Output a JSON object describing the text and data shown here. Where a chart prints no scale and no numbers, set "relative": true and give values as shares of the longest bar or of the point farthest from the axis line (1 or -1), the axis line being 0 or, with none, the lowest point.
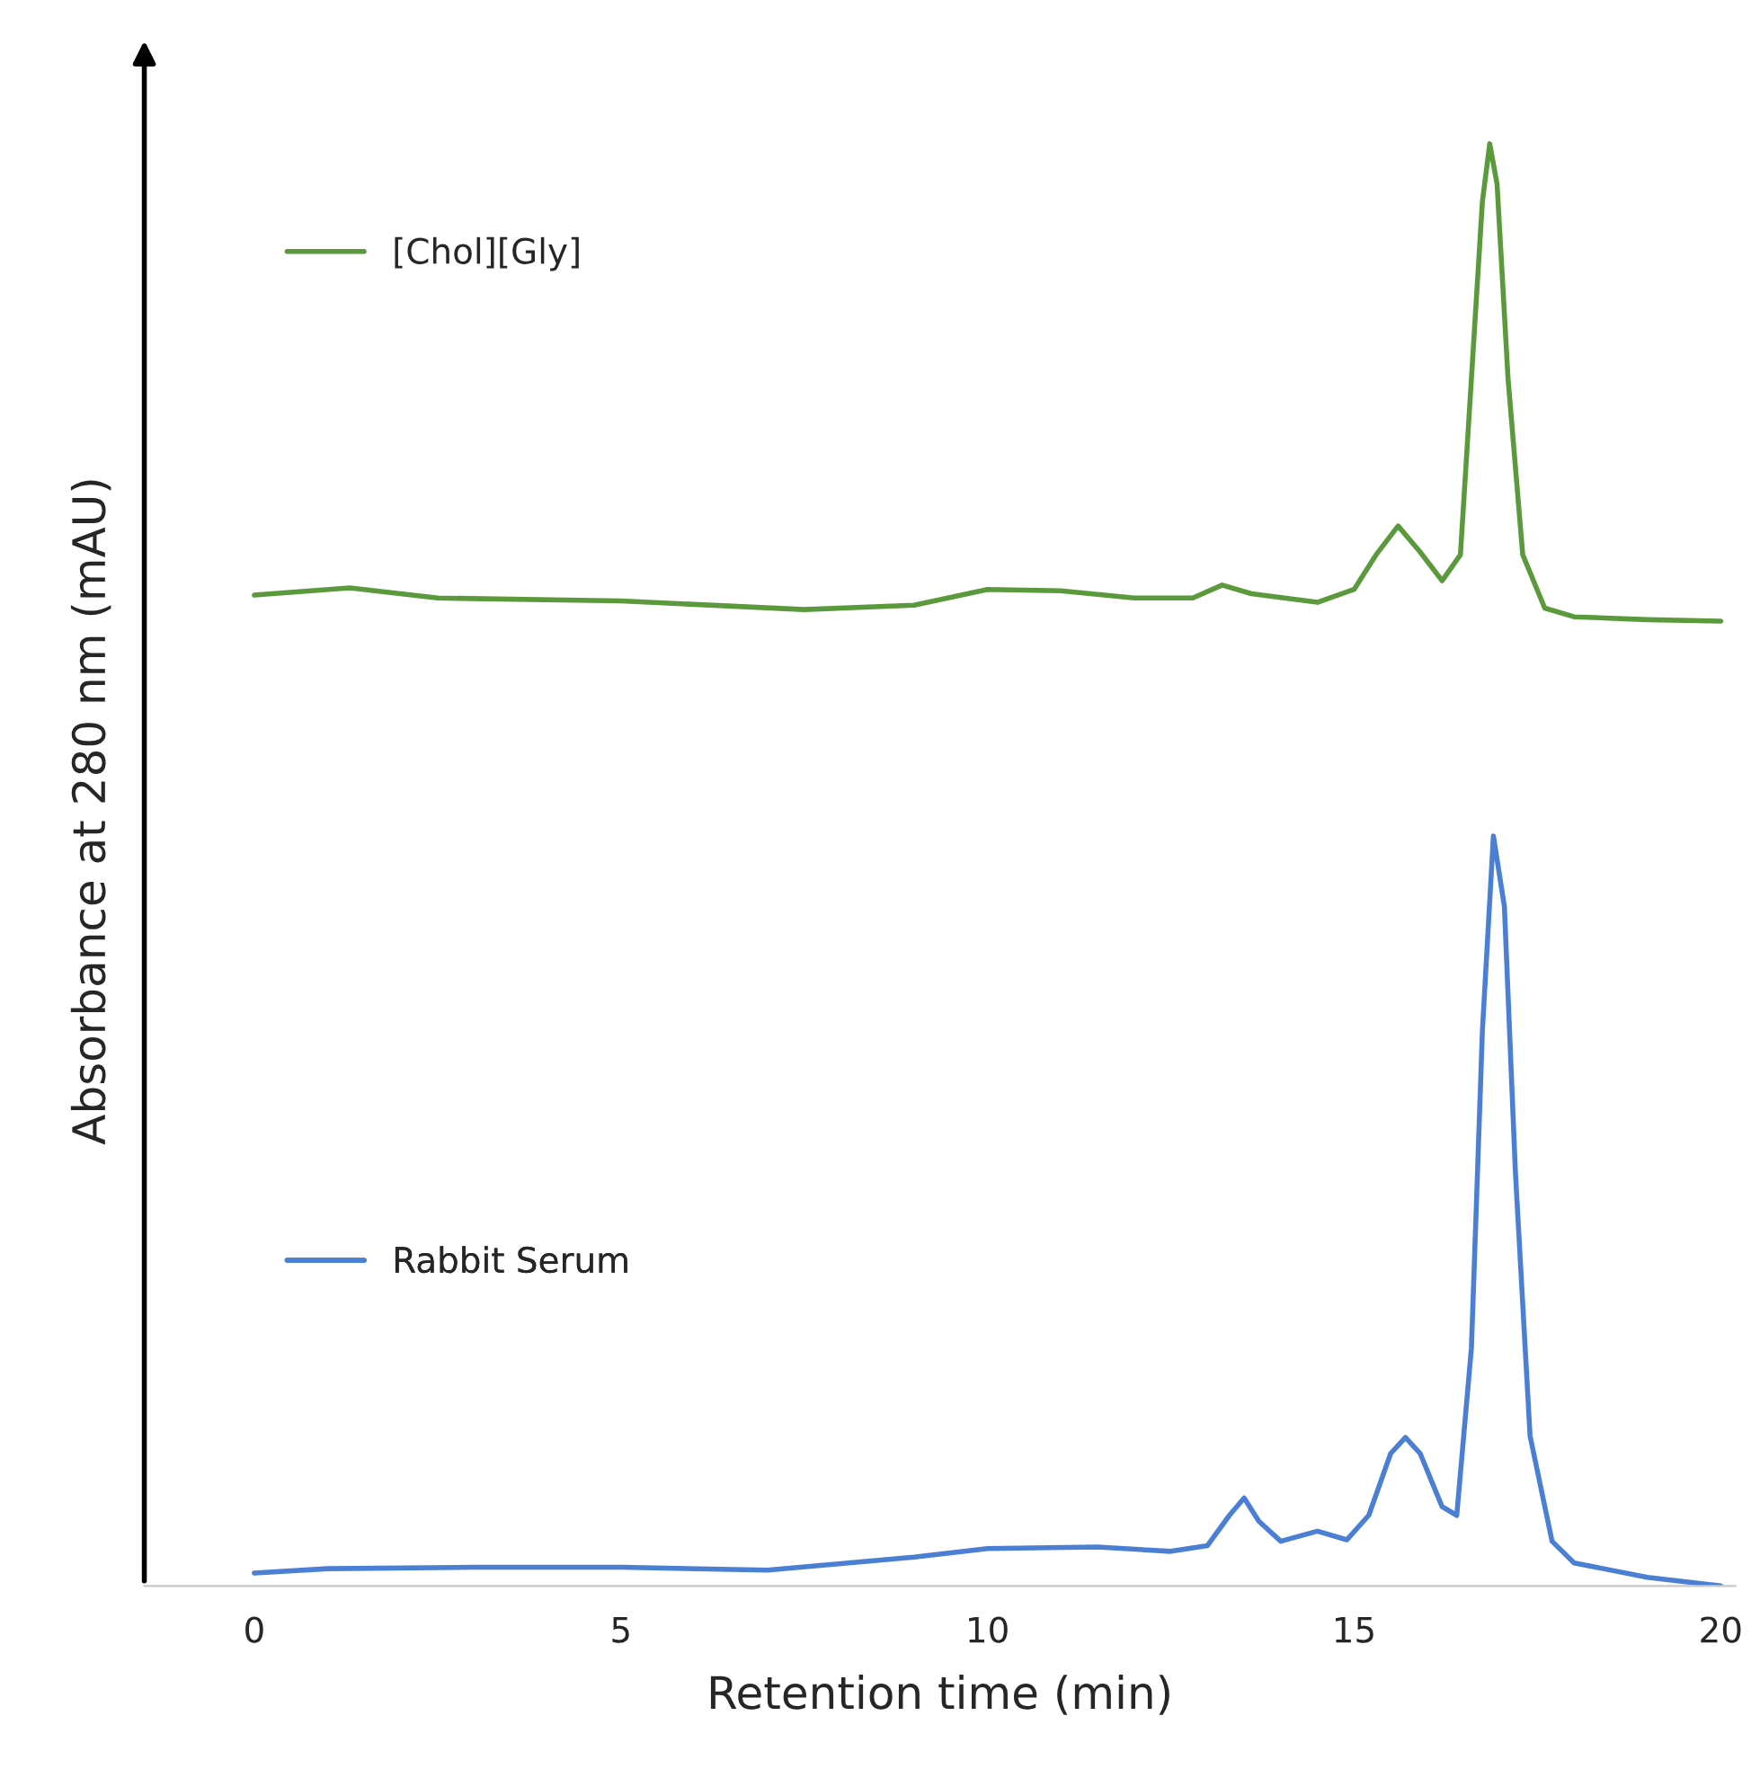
{
  "chart_data": {
    "type": "line",
    "relative": true,
    "xlabel": "Retention time (min)",
    "ylabel": "Absorbance at 280 nm (mAU)",
    "xlim": [
      -1.5,
      20.2
    ],
    "xticks": [
      0,
      5,
      10,
      15,
      20
    ],
    "grid": false,
    "legend": "left",
    "tick_labels": "x",
    "series": [
      {
        "name": "[Chol][Gly]",
        "color": "#5b9a3c",
        "x": [
          0,
          1.3,
          2.5,
          5,
          7.5,
          9,
          10,
          11,
          12,
          12.8,
          13.2,
          13.6,
          14.5,
          15.0,
          15.3,
          15.6,
          15.9,
          16.2,
          16.45,
          16.6,
          16.75,
          16.85,
          16.95,
          17.1,
          17.3,
          17.6,
          18,
          19,
          20
        ],
        "values": [
          0.687,
          0.692,
          0.685,
          0.683,
          0.677,
          0.68,
          0.691,
          0.69,
          0.685,
          0.685,
          0.694,
          0.688,
          0.682,
          0.691,
          0.715,
          0.735,
          0.717,
          0.697,
          0.715,
          0.837,
          0.96,
          1,
          0.972,
          0.837,
          0.715,
          0.678,
          0.672,
          0.67,
          0.669
        ]
      },
      {
        "name": "Rabbit Serum",
        "color": "#4a7fd4",
        "x": [
          0,
          1,
          3,
          5,
          7,
          9,
          10,
          11.5,
          12.5,
          13.0,
          13.3,
          13.5,
          13.7,
          14.0,
          14.5,
          14.9,
          15.2,
          15.5,
          15.7,
          15.9,
          16.2,
          16.4,
          16.6,
          16.75,
          16.9,
          17.05,
          17.2,
          17.4,
          17.7,
          18,
          19,
          20
        ],
        "values": [
          0.009,
          0.012,
          0.013,
          0.013,
          0.011,
          0.02,
          0.026,
          0.027,
          0.024,
          0.028,
          0.049,
          0.061,
          0.045,
          0.031,
          0.038,
          0.032,
          0.049,
          0.092,
          0.103,
          0.092,
          0.055,
          0.049,
          0.165,
          0.385,
          0.52,
          0.471,
          0.287,
          0.104,
          0.031,
          0.016,
          0.006,
          0
        ]
      }
    ]
  }
}
